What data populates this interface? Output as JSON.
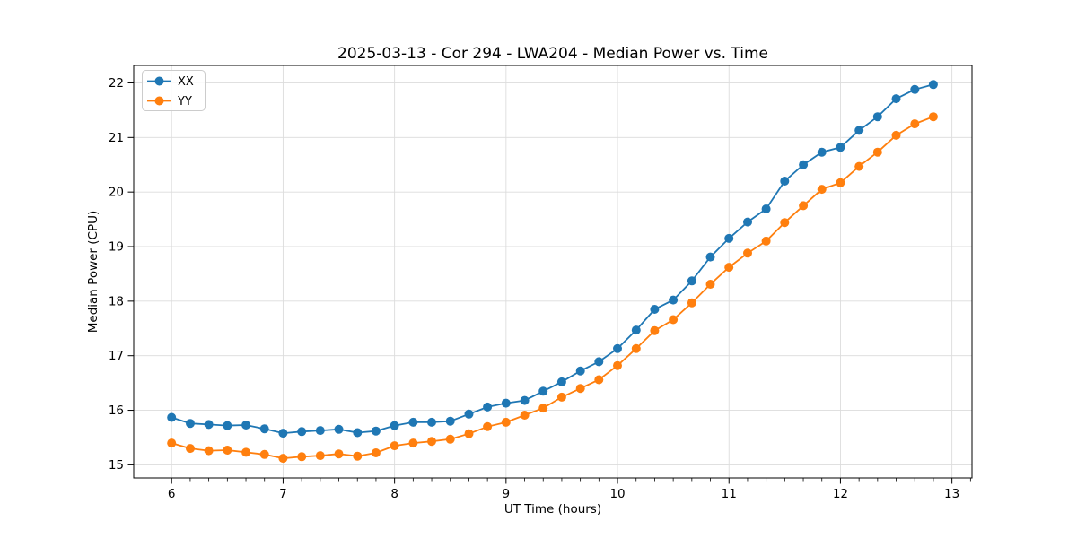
{
  "chart_data": {
    "type": "line",
    "title": "2025-03-13 - Cor 294 - LWA204 - Median Power vs. Time",
    "xlabel": "UT Time (hours)",
    "ylabel": "Median Power (CPU)",
    "xlim": [
      5.66,
      13.18
    ],
    "ylim": [
      14.76,
      22.32
    ],
    "xticks": [
      6,
      7,
      8,
      9,
      10,
      11,
      12,
      13
    ],
    "yticks": [
      15,
      16,
      17,
      18,
      19,
      20,
      21,
      22
    ],
    "grid": true,
    "grid_color": "#dcdcdc",
    "spine_color": "#000000",
    "legend_position": "upper left",
    "marker": "circle",
    "x": [
      6.0,
      6.167,
      6.333,
      6.5,
      6.667,
      6.833,
      7.0,
      7.167,
      7.333,
      7.5,
      7.667,
      7.833,
      8.0,
      8.167,
      8.333,
      8.5,
      8.667,
      8.833,
      9.0,
      9.167,
      9.333,
      9.5,
      9.667,
      9.833,
      10.0,
      10.167,
      10.333,
      10.5,
      10.667,
      10.833,
      11.0,
      11.167,
      11.333,
      11.5,
      11.667,
      11.833,
      12.0,
      12.167,
      12.333,
      12.5,
      12.667,
      12.833
    ],
    "series": [
      {
        "name": "XX",
        "color": "#1f77b4",
        "values": [
          15.87,
          15.76,
          15.74,
          15.72,
          15.73,
          15.66,
          15.58,
          15.61,
          15.63,
          15.65,
          15.59,
          15.62,
          15.72,
          15.78,
          15.78,
          15.8,
          15.93,
          16.06,
          16.13,
          16.18,
          16.35,
          16.52,
          16.72,
          16.89,
          17.13,
          17.47,
          17.85,
          18.02,
          18.37,
          18.81,
          19.15,
          19.45,
          19.69,
          20.2,
          20.5,
          20.73,
          20.82,
          21.13,
          21.38,
          21.71,
          21.88,
          21.97
        ]
      },
      {
        "name": "YY",
        "color": "#ff7f0e",
        "values": [
          15.4,
          15.3,
          15.26,
          15.27,
          15.23,
          15.19,
          15.12,
          15.15,
          15.17,
          15.2,
          15.16,
          15.22,
          15.35,
          15.4,
          15.43,
          15.47,
          15.57,
          15.7,
          15.78,
          15.91,
          16.04,
          16.24,
          16.4,
          16.56,
          16.82,
          17.13,
          17.46,
          17.66,
          17.97,
          18.31,
          18.62,
          18.88,
          19.1,
          19.44,
          19.75,
          20.05,
          20.17,
          20.47,
          20.73,
          21.04,
          21.25,
          21.38
        ]
      }
    ]
  }
}
